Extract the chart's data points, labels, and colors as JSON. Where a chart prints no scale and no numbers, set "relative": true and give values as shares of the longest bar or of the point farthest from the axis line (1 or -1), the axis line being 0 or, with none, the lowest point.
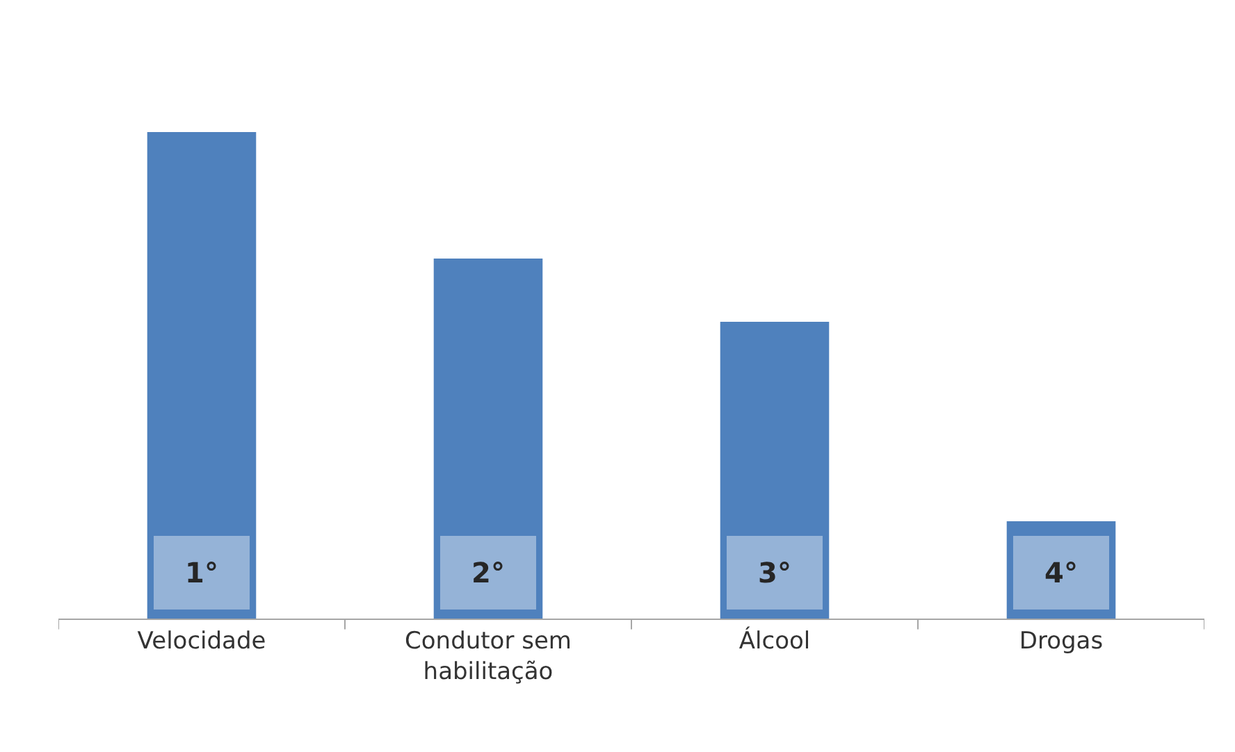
{
  "chart_data": {
    "type": "bar",
    "relative": true,
    "categories": [
      "Velocidade",
      "Condutor sem habilitação",
      "Álcool",
      "Drogas"
    ],
    "values": [
      1,
      0.74,
      0.61,
      0.2
    ],
    "annotations": [
      "1°",
      "2°",
      "3°",
      "4°"
    ],
    "color": "#4f81bd"
  }
}
